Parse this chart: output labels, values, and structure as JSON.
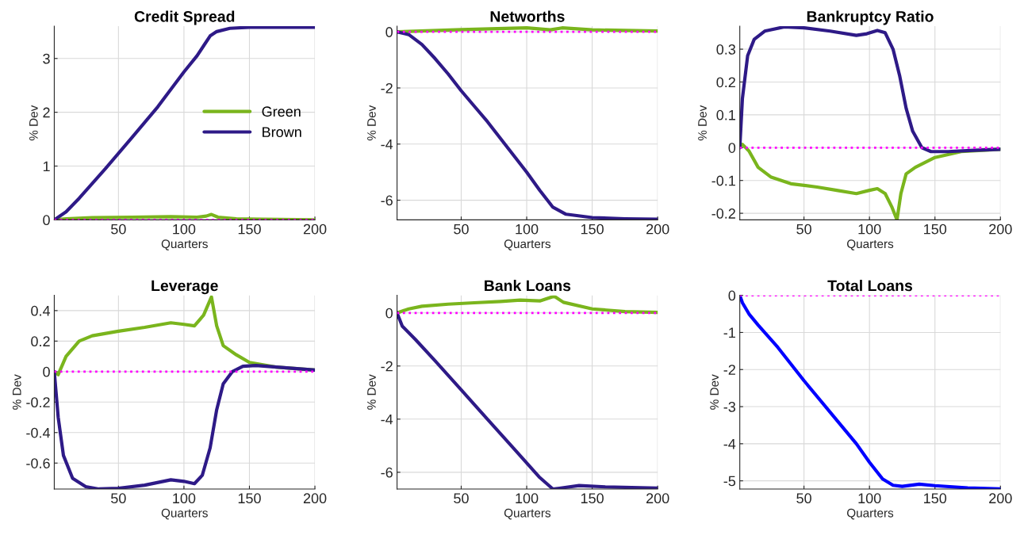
{
  "chart_data": [
    {
      "type": "line",
      "title": "Credit Spread",
      "xlabel": "Quarters",
      "ylabel": "% Dev",
      "xlim": [
        1,
        200
      ],
      "xticks": [
        50,
        100,
        150,
        200
      ],
      "ylim": [
        0,
        3.6
      ],
      "yticks": [
        0,
        1,
        2,
        3
      ],
      "grid": true,
      "legend": "center right",
      "ref_lines": [
        {
          "axis": "y",
          "value": 0,
          "color": "#ff00ff",
          "line_style": "dotted"
        }
      ],
      "series": [
        {
          "name": "Green",
          "color": "#7ab51d",
          "x": [
            1,
            10,
            30,
            60,
            90,
            110,
            117,
            121,
            126,
            140,
            160,
            200
          ],
          "values": [
            0,
            0.02,
            0.04,
            0.05,
            0.06,
            0.05,
            0.07,
            0.1,
            0.05,
            0.02,
            0.01,
            0
          ]
        },
        {
          "name": "Brown",
          "color": "#2e1a87",
          "x": [
            1,
            10,
            20,
            40,
            60,
            80,
            100,
            110,
            120,
            125,
            135,
            150,
            200
          ],
          "values": [
            0,
            0.15,
            0.4,
            0.95,
            1.52,
            2.1,
            2.75,
            3.05,
            3.42,
            3.5,
            3.56,
            3.58,
            3.58
          ]
        }
      ]
    },
    {
      "type": "line",
      "title": "Networths",
      "xlabel": "Quarters",
      "ylabel": "% Dev",
      "xlim": [
        1,
        200
      ],
      "xticks": [
        50,
        100,
        150,
        200
      ],
      "ylim": [
        -6.7,
        0.2
      ],
      "yticks": [
        -6,
        -4,
        -2,
        0
      ],
      "grid": true,
      "ref_lines": [
        {
          "axis": "y",
          "value": 0,
          "color": "#ff00ff",
          "line_style": "dotted"
        }
      ],
      "series": [
        {
          "color": "#7ab51d",
          "x": [
            1,
            50,
            100,
            118,
            127,
            150,
            200
          ],
          "values": [
            0,
            0.08,
            0.14,
            0.07,
            0.14,
            0.07,
            0.03
          ]
        },
        {
          "color": "#2e1a87",
          "x": [
            1,
            10,
            20,
            30,
            40,
            50,
            60,
            70,
            80,
            90,
            100,
            110,
            120,
            130,
            150,
            175,
            200
          ],
          "values": [
            0,
            -0.1,
            -0.45,
            -0.95,
            -1.5,
            -2.1,
            -2.65,
            -3.2,
            -3.8,
            -4.4,
            -5.0,
            -5.65,
            -6.25,
            -6.5,
            -6.62,
            -6.66,
            -6.68
          ]
        }
      ]
    },
    {
      "type": "line",
      "title": "Bankruptcy Ratio",
      "xlabel": "Quarters",
      "ylabel": "% Dev",
      "xlim": [
        1,
        200
      ],
      "xticks": [
        50,
        100,
        150,
        200
      ],
      "ylim": [
        -0.22,
        0.37
      ],
      "yticks": [
        -0.2,
        -0.1,
        0,
        0.1,
        0.2,
        0.3
      ],
      "grid": true,
      "ref_lines": [
        {
          "axis": "y",
          "value": 0,
          "color": "#ff00ff",
          "line_style": "dotted"
        }
      ],
      "series": [
        {
          "color": "#7ab51d",
          "x": [
            1,
            3,
            8,
            15,
            25,
            40,
            60,
            75,
            90,
            100,
            106,
            112,
            117,
            121,
            124,
            128,
            135,
            150,
            170,
            200
          ],
          "values": [
            0,
            0.01,
            -0.01,
            -0.06,
            -0.09,
            -0.11,
            -0.12,
            -0.13,
            -0.14,
            -0.13,
            -0.125,
            -0.14,
            -0.18,
            -0.22,
            -0.14,
            -0.08,
            -0.06,
            -0.03,
            -0.012,
            -0.005
          ]
        },
        {
          "color": "#2e1a87",
          "x": [
            1,
            3,
            7,
            12,
            20,
            35,
            50,
            70,
            90,
            98,
            106,
            112,
            118,
            123,
            128,
            133,
            140,
            147,
            160,
            180,
            200
          ],
          "values": [
            0,
            0.15,
            0.28,
            0.33,
            0.355,
            0.368,
            0.365,
            0.355,
            0.342,
            0.347,
            0.357,
            0.35,
            0.3,
            0.22,
            0.12,
            0.05,
            0.0,
            -0.012,
            -0.012,
            -0.008,
            -0.005
          ]
        }
      ]
    },
    {
      "type": "line",
      "title": "Leverage",
      "xlabel": "Quarters",
      "ylabel": "% Dev",
      "xlim": [
        1,
        200
      ],
      "xticks": [
        50,
        100,
        150,
        200
      ],
      "ylim": [
        -0.77,
        0.5
      ],
      "yticks": [
        -0.6,
        -0.4,
        -0.2,
        0,
        0.2,
        0.4
      ],
      "grid": true,
      "ref_lines": [
        {
          "axis": "y",
          "value": 0,
          "color": "#ff00ff",
          "line_style": "dotted"
        }
      ],
      "series": [
        {
          "color": "#7ab51d",
          "x": [
            1,
            4,
            10,
            20,
            30,
            50,
            70,
            90,
            100,
            108,
            115,
            121,
            125,
            130,
            140,
            150,
            170,
            200
          ],
          "values": [
            0,
            -0.02,
            0.1,
            0.2,
            0.235,
            0.265,
            0.29,
            0.32,
            0.31,
            0.3,
            0.37,
            0.49,
            0.3,
            0.17,
            0.11,
            0.06,
            0.03,
            0.01
          ]
        },
        {
          "color": "#2e1a87",
          "x": [
            1,
            4,
            8,
            15,
            25,
            35,
            50,
            70,
            90,
            100,
            108,
            114,
            120,
            125,
            130,
            137,
            145,
            155,
            200
          ],
          "values": [
            0,
            -0.3,
            -0.55,
            -0.7,
            -0.755,
            -0.77,
            -0.765,
            -0.745,
            -0.71,
            -0.72,
            -0.735,
            -0.68,
            -0.5,
            -0.25,
            -0.08,
            0.0,
            0.035,
            0.04,
            0.01
          ]
        }
      ]
    },
    {
      "type": "line",
      "title": "Bank Loans",
      "xlabel": "Quarters",
      "ylabel": "% Dev",
      "xlim": [
        1,
        200
      ],
      "xticks": [
        50,
        100,
        150,
        200
      ],
      "ylim": [
        -6.63,
        0.66
      ],
      "yticks": [
        -6,
        -4,
        -2,
        0
      ],
      "grid": true,
      "ref_lines": [
        {
          "axis": "y",
          "value": 0,
          "color": "#ff00ff",
          "line_style": "dotted"
        }
      ],
      "series": [
        {
          "color": "#7ab51d",
          "x": [
            1,
            10,
            20,
            40,
            60,
            80,
            95,
            110,
            121,
            128,
            150,
            175,
            200
          ],
          "values": [
            0,
            0.15,
            0.25,
            0.33,
            0.38,
            0.43,
            0.48,
            0.45,
            0.63,
            0.4,
            0.15,
            0.05,
            0.02
          ]
        },
        {
          "color": "#2e1a87",
          "x": [
            1,
            5,
            15,
            30,
            50,
            70,
            90,
            100,
            110,
            120,
            125,
            140,
            160,
            200
          ],
          "values": [
            0,
            -0.5,
            -1.0,
            -1.8,
            -2.9,
            -4.0,
            -5.1,
            -5.65,
            -6.2,
            -6.63,
            -6.6,
            -6.5,
            -6.55,
            -6.6
          ]
        }
      ]
    },
    {
      "type": "line",
      "title": "Total Loans",
      "xlabel": "Quarters",
      "ylabel": "% Dev",
      "xlim": [
        1,
        200
      ],
      "xticks": [
        50,
        100,
        150,
        200
      ],
      "ylim": [
        -5.22,
        0
      ],
      "yticks": [
        -5,
        -4,
        -3,
        -2,
        -1,
        0
      ],
      "grid": true,
      "ref_lines": [
        {
          "axis": "y",
          "value": 0,
          "color": "#ff00ff",
          "line_style": "dotted"
        }
      ],
      "series": [
        {
          "color": "#0000ff",
          "x": [
            1,
            3,
            8,
            15,
            30,
            50,
            70,
            90,
            100,
            110,
            118,
            125,
            138,
            150,
            175,
            200
          ],
          "values": [
            0,
            -0.2,
            -0.5,
            -0.8,
            -1.4,
            -2.3,
            -3.15,
            -4.0,
            -4.5,
            -4.95,
            -5.12,
            -5.15,
            -5.09,
            -5.13,
            -5.19,
            -5.22
          ]
        }
      ]
    }
  ]
}
